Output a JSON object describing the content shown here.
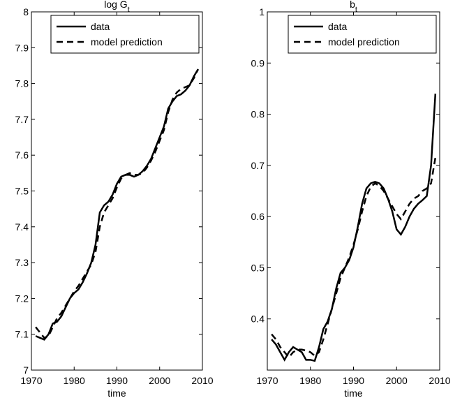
{
  "chart_data": [
    {
      "type": "line",
      "title": "log G",
      "title_sub": "t",
      "x_label": "time",
      "x": [
        1971,
        1972,
        1973,
        1974,
        1975,
        1976,
        1977,
        1978,
        1979,
        1980,
        1981,
        1982,
        1983,
        1984,
        1985,
        1986,
        1987,
        1988,
        1989,
        1990,
        1991,
        1992,
        1993,
        1994,
        1995,
        1996,
        1997,
        1998,
        1999,
        2000,
        2001,
        2002,
        2003,
        2004,
        2005,
        2006,
        2007,
        2008,
        2009
      ],
      "series": [
        {
          "name": "data",
          "color": "#000000",
          "dash": "none",
          "values": [
            7.095,
            7.09,
            7.085,
            7.1,
            7.13,
            7.135,
            7.15,
            7.175,
            7.2,
            7.215,
            7.225,
            7.245,
            7.27,
            7.3,
            7.35,
            7.44,
            7.46,
            7.47,
            7.49,
            7.52,
            7.54,
            7.545,
            7.545,
            7.54,
            7.545,
            7.555,
            7.57,
            7.59,
            7.62,
            7.65,
            7.68,
            7.73,
            7.75,
            7.765,
            7.77,
            7.78,
            7.795,
            7.82,
            7.84
          ]
        },
        {
          "name": "model prediction",
          "color": "#000000",
          "dash": "9,6",
          "values": [
            7.12,
            7.105,
            7.09,
            7.095,
            7.12,
            7.145,
            7.16,
            7.18,
            7.2,
            7.22,
            7.235,
            7.255,
            7.275,
            7.295,
            7.33,
            7.4,
            7.44,
            7.46,
            7.48,
            7.51,
            7.535,
            7.545,
            7.55,
            7.545,
            7.545,
            7.55,
            7.565,
            7.585,
            7.61,
            7.64,
            7.67,
            7.72,
            7.755,
            7.775,
            7.785,
            7.79,
            7.795,
            7.815,
            7.84
          ]
        }
      ],
      "xlim": [
        1970,
        2010
      ],
      "xticks": [
        1970,
        1980,
        1990,
        2000,
        2010
      ],
      "ylim": [
        7,
        8
      ],
      "yticks": [
        7,
        7.1,
        7.2,
        7.3,
        7.4,
        7.5,
        7.6,
        7.7,
        7.8,
        7.9,
        8
      ],
      "legend": "upper right"
    },
    {
      "type": "line",
      "title": "b",
      "title_sub": "t",
      "x_label": "time",
      "x": [
        1971,
        1972,
        1973,
        1974,
        1975,
        1976,
        1977,
        1978,
        1979,
        1980,
        1981,
        1982,
        1983,
        1984,
        1985,
        1986,
        1987,
        1988,
        1989,
        1990,
        1991,
        1992,
        1993,
        1994,
        1995,
        1996,
        1997,
        1998,
        1999,
        2000,
        2001,
        2002,
        2003,
        2004,
        2005,
        2006,
        2007,
        2008,
        2009
      ],
      "series": [
        {
          "name": "data",
          "color": "#000000",
          "dash": "none",
          "values": [
            0.36,
            0.35,
            0.335,
            0.32,
            0.335,
            0.345,
            0.34,
            0.335,
            0.32,
            0.32,
            0.318,
            0.345,
            0.38,
            0.395,
            0.42,
            0.46,
            0.49,
            0.5,
            0.515,
            0.54,
            0.58,
            0.625,
            0.655,
            0.665,
            0.668,
            0.665,
            0.655,
            0.635,
            0.61,
            0.575,
            0.565,
            0.58,
            0.6,
            0.615,
            0.625,
            0.632,
            0.64,
            0.7,
            0.84
          ]
        },
        {
          "name": "model prediction",
          "color": "#000000",
          "dash": "9,6",
          "values": [
            0.37,
            0.36,
            0.345,
            0.335,
            0.325,
            0.335,
            0.34,
            0.34,
            0.338,
            0.335,
            0.328,
            0.335,
            0.36,
            0.39,
            0.42,
            0.45,
            0.48,
            0.5,
            0.52,
            0.545,
            0.575,
            0.61,
            0.64,
            0.658,
            0.665,
            0.66,
            0.65,
            0.635,
            0.62,
            0.605,
            0.595,
            0.61,
            0.625,
            0.635,
            0.64,
            0.65,
            0.655,
            0.665,
            0.715
          ]
        }
      ],
      "xlim": [
        1970,
        2010
      ],
      "xticks": [
        1970,
        1980,
        1990,
        2000,
        2010
      ],
      "ylim": [
        0.3,
        1
      ],
      "yticks": [
        0.4,
        0.5,
        0.6,
        0.7,
        0.8,
        0.9,
        1
      ],
      "legend": "upper right"
    }
  ]
}
